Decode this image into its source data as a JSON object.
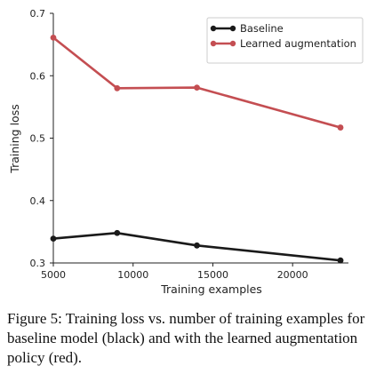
{
  "chart_data": {
    "type": "line",
    "title": "",
    "xlabel": "Training examples",
    "ylabel": "Training loss",
    "xlim": [
      5000,
      23500
    ],
    "ylim": [
      0.3,
      0.7
    ],
    "x_ticks": [
      "5000",
      "10000",
      "15000",
      "20000"
    ],
    "y_ticks": [
      "0.3",
      "0.4",
      "0.5",
      "0.6",
      "0.7"
    ],
    "grid": false,
    "legend_position": "top-right",
    "series": [
      {
        "name": "Baseline",
        "color": "#1a1a1a",
        "points": [
          [
            5000,
            0.339
          ],
          [
            9000,
            0.348
          ],
          [
            14000,
            0.328
          ],
          [
            23000,
            0.304
          ]
        ]
      },
      {
        "name": "Learned augmentation",
        "color": "#c44e52",
        "points": [
          [
            5000,
            0.661
          ],
          [
            9000,
            0.58
          ],
          [
            14000,
            0.581
          ],
          [
            23000,
            0.517
          ]
        ]
      }
    ]
  },
  "caption": "Figure 5: Training loss vs. number of training examples for baseline model (black) and with the learned augmentation policy (red)."
}
